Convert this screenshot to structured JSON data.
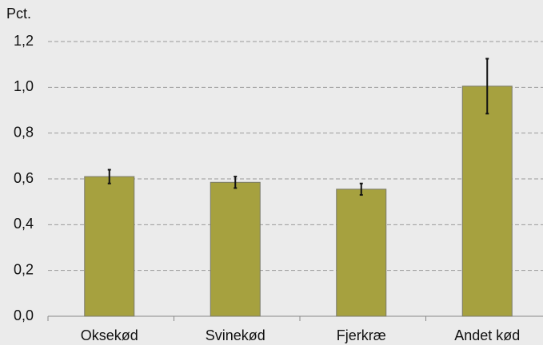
{
  "chart_data": {
    "type": "bar",
    "y_label": "Pct.",
    "categories": [
      "Oksekød",
      "Svinekød",
      "Fjerkræ",
      "Andet kød"
    ],
    "values": [
      0.61,
      0.585,
      0.555,
      1.005
    ],
    "errors": [
      0.03,
      0.025,
      0.025,
      0.12
    ],
    "color": "#a6a13f",
    "ylim": [
      0,
      1.2
    ],
    "yticks": [
      {
        "value": 0,
        "label": "0,0"
      },
      {
        "value": 0.2,
        "label": "0,2"
      },
      {
        "value": 0.4,
        "label": "0,4"
      },
      {
        "value": 0.6,
        "label": "0,6"
      },
      {
        "value": 0.8,
        "label": "0,8"
      },
      {
        "value": 1,
        "label": "1,0"
      },
      {
        "value": 1.2,
        "label": "1,2"
      }
    ],
    "grid": true
  }
}
